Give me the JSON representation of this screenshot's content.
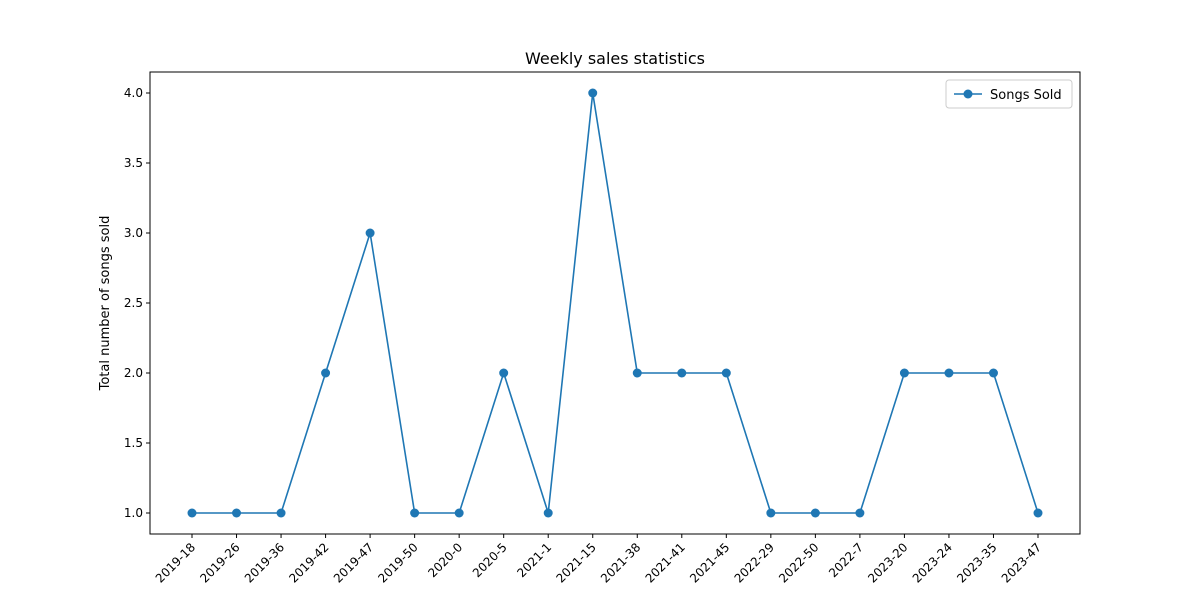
{
  "colors": {
    "series": "#1f77b4",
    "axis": "#000000",
    "legend_border": "#cccccc",
    "background": "#ffffff"
  },
  "chart_data": {
    "type": "line",
    "title": "Weekly sales statistics",
    "xlabel": "",
    "ylabel": "Total number of songs sold",
    "categories": [
      "2019-18",
      "2019-26",
      "2019-36",
      "2019-42",
      "2019-47",
      "2019-50",
      "2020-0",
      "2020-5",
      "2021-1",
      "2021-15",
      "2021-38",
      "2021-41",
      "2021-45",
      "2022-29",
      "2022-50",
      "2022-7",
      "2023-20",
      "2023-24",
      "2023-35",
      "2023-47"
    ],
    "series": [
      {
        "name": "Songs Sold",
        "marker": "circle",
        "values": [
          1,
          1,
          1,
          2,
          3,
          1,
          1,
          2,
          1,
          4,
          2,
          2,
          2,
          1,
          1,
          1,
          2,
          2,
          2,
          1
        ]
      }
    ],
    "ylim": [
      0.85,
      4.15
    ],
    "yticks": [
      1.0,
      1.5,
      2.0,
      2.5,
      3.0,
      3.5,
      4.0
    ],
    "ytick_labels": [
      "1.0",
      "1.5",
      "2.0",
      "2.5",
      "3.0",
      "3.5",
      "4.0"
    ],
    "grid": false,
    "legend_position": "top-right"
  }
}
